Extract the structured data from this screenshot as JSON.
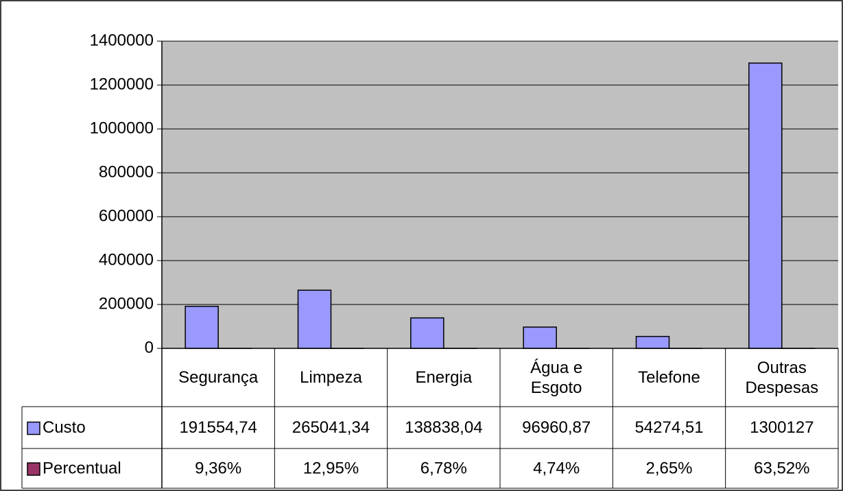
{
  "chart_data": {
    "type": "bar",
    "categories": [
      "Segurança",
      "Limpeza",
      "Energia",
      "Água e Esgoto",
      "Telefone",
      "Outras Despesas"
    ],
    "series": [
      {
        "name": "Custo",
        "color": "#9999ff",
        "values": [
          191554.74,
          265041.34,
          138838.04,
          96960.87,
          54274.51,
          1300127
        ],
        "value_labels": [
          "191554,74",
          "265041,34",
          "138838,04",
          "96960,87",
          "54274,51",
          "1300127"
        ]
      },
      {
        "name": "Percentual",
        "color": "#993366",
        "values": [
          9.36,
          12.95,
          6.78,
          4.74,
          2.65,
          63.52
        ],
        "value_labels": [
          "9,36%",
          "12,95%",
          "6,78%",
          "4,74%",
          "2,65%",
          "63,52%"
        ]
      }
    ],
    "ylim": [
      0,
      1400000
    ],
    "yticks": [
      0,
      200000,
      400000,
      600000,
      800000,
      1000000,
      1200000,
      1400000
    ],
    "grid": true
  }
}
